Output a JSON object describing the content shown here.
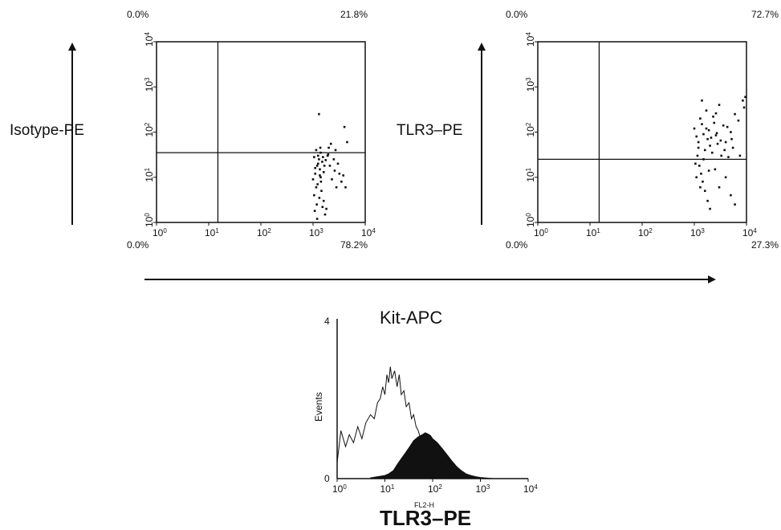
{
  "chart_data": [
    {
      "type": "scatter",
      "panel": "left",
      "ylabel": "Isotype-PE",
      "xscale": "log",
      "yscale": "log",
      "xlim": [
        1,
        10000
      ],
      "ylim": [
        1,
        10000
      ],
      "x_ticks": [
        "10^0",
        "10^1",
        "10^2",
        "10^3",
        "10^4"
      ],
      "y_ticks": [
        "10^0",
        "10^1",
        "10^2",
        "10^3",
        "10^4"
      ],
      "gate": {
        "x": 15,
        "y": 35
      },
      "quadrants": {
        "upper_left": "0.0%",
        "upper_right": "21.8%",
        "lower_left": "0.0%",
        "lower_right": "78.2%"
      },
      "points": [
        [
          1200,
          18
        ],
        [
          1100,
          12
        ],
        [
          1300,
          25
        ],
        [
          1000,
          9
        ],
        [
          1150,
          6
        ],
        [
          1250,
          30
        ],
        [
          1050,
          4
        ],
        [
          1350,
          15
        ],
        [
          1180,
          2.5
        ],
        [
          1400,
          10
        ],
        [
          1220,
          7
        ],
        [
          1080,
          1.8
        ],
        [
          1500,
          22
        ],
        [
          1600,
          3
        ],
        [
          1700,
          1.5
        ],
        [
          1900,
          30
        ],
        [
          2000,
          45
        ],
        [
          2200,
          55
        ],
        [
          2500,
          25
        ],
        [
          2600,
          14
        ],
        [
          2800,
          6
        ],
        [
          3200,
          12
        ],
        [
          3500,
          8
        ],
        [
          4000,
          130
        ],
        [
          4500,
          60
        ],
        [
          1300,
          250
        ],
        [
          1150,
          40
        ],
        [
          1400,
          35
        ],
        [
          1250,
          20
        ],
        [
          1100,
          16
        ],
        [
          1350,
          11
        ],
        [
          1450,
          5
        ],
        [
          1550,
          28
        ],
        [
          1650,
          18
        ],
        [
          1800,
          2
        ],
        [
          1200,
          1.2
        ],
        [
          1320,
          3.5
        ],
        [
          1420,
          8
        ],
        [
          1600,
          13
        ],
        [
          1750,
          24
        ],
        [
          1950,
          32
        ],
        [
          2100,
          18
        ],
        [
          2300,
          9
        ],
        [
          2700,
          40
        ],
        [
          3000,
          20
        ],
        [
          3800,
          11
        ],
        [
          4200,
          6
        ],
        [
          1050,
          28
        ],
        [
          1380,
          45
        ],
        [
          1520,
          2.2
        ]
      ]
    },
    {
      "type": "scatter",
      "panel": "right",
      "ylabel": "TLR3–PE",
      "xscale": "log",
      "yscale": "log",
      "xlim": [
        1,
        10000
      ],
      "ylim": [
        1,
        10000
      ],
      "x_ticks": [
        "10^0",
        "10^1",
        "10^2",
        "10^3",
        "10^4"
      ],
      "y_ticks": [
        "10^0",
        "10^1",
        "10^2",
        "10^3",
        "10^4"
      ],
      "gate": {
        "x": 15,
        "y": 25
      },
      "quadrants": {
        "upper_left": "0.0%",
        "upper_right": "72.7%",
        "lower_left": "0.0%",
        "lower_right": "27.3%"
      },
      "points": [
        [
          1000,
          120
        ],
        [
          1100,
          80
        ],
        [
          1200,
          60
        ],
        [
          1300,
          200
        ],
        [
          1400,
          150
        ],
        [
          1500,
          90
        ],
        [
          1600,
          40
        ],
        [
          1700,
          300
        ],
        [
          1800,
          70
        ],
        [
          1900,
          110
        ],
        [
          2000,
          50
        ],
        [
          2200,
          35
        ],
        [
          2400,
          160
        ],
        [
          2600,
          85
        ],
        [
          2800,
          55
        ],
        [
          3000,
          400
        ],
        [
          3300,
          30
        ],
        [
          3600,
          140
        ],
        [
          4000,
          60
        ],
        [
          4500,
          28
        ],
        [
          5000,
          100
        ],
        [
          5500,
          45
        ],
        [
          6000,
          250
        ],
        [
          7000,
          180
        ],
        [
          9000,
          350
        ],
        [
          9500,
          600
        ],
        [
          1150,
          30
        ],
        [
          1250,
          18
        ],
        [
          1350,
          12
        ],
        [
          1450,
          8
        ],
        [
          1600,
          5
        ],
        [
          1800,
          3
        ],
        [
          2000,
          2
        ],
        [
          2500,
          15
        ],
        [
          3000,
          6
        ],
        [
          4000,
          10
        ],
        [
          5000,
          4
        ],
        [
          6000,
          2.5
        ],
        [
          1050,
          20
        ],
        [
          1200,
          45
        ],
        [
          1500,
          25
        ],
        [
          1700,
          120
        ],
        [
          2100,
          75
        ],
        [
          2300,
          220
        ],
        [
          2700,
          95
        ],
        [
          3200,
          65
        ],
        [
          3800,
          40
        ],
        [
          4300,
          130
        ],
        [
          5200,
          70
        ],
        [
          7500,
          30
        ],
        [
          8500,
          500
        ],
        [
          1100,
          10
        ],
        [
          1300,
          6
        ],
        [
          1900,
          14
        ],
        [
          1400,
          500
        ],
        [
          2600,
          260
        ]
      ]
    },
    {
      "type": "area",
      "panel": "histogram",
      "ylabel": "Events",
      "xlabel": "FL2-H",
      "xscale": "log",
      "xlim": [
        1,
        10000
      ],
      "ylim": [
        0,
        4
      ],
      "x_ticks": [
        "10^0",
        "10^1",
        "10^2",
        "10^3",
        "10^4"
      ],
      "y_ticks": [
        "0",
        "4"
      ],
      "series": [
        {
          "style": "outline",
          "x": [
            1,
            1.2,
            1.5,
            1.8,
            2.2,
            2.7,
            3.3,
            4,
            5,
            6,
            7,
            8,
            9,
            10,
            11,
            12,
            13,
            14,
            16,
            18,
            20,
            22,
            25,
            28,
            32,
            36,
            40,
            45,
            50,
            56,
            63,
            70,
            80,
            90,
            100,
            125,
            160,
            200,
            250,
            320,
            400,
            500,
            630,
            800,
            1000
          ],
          "values": [
            0.4,
            1.2,
            0.8,
            1.1,
            0.9,
            1.3,
            1.0,
            1.4,
            1.6,
            1.5,
            1.9,
            2.0,
            2.3,
            2.1,
            2.6,
            2.4,
            2.8,
            2.5,
            2.7,
            2.3,
            2.6,
            2.1,
            2.2,
            1.8,
            1.9,
            1.5,
            1.6,
            1.3,
            1.2,
            1.0,
            0.9,
            0.7,
            0.6,
            0.5,
            0.4,
            0.3,
            0.2,
            0.15,
            0.1,
            0.08,
            0.05,
            0.04,
            0.03,
            0.02,
            0.01
          ]
        },
        {
          "style": "filled",
          "x": [
            5,
            7,
            10,
            12,
            15,
            18,
            22,
            27,
            33,
            40,
            50,
            60,
            70,
            80,
            90,
            100,
            125,
            160,
            200,
            250,
            320,
            400,
            500,
            630,
            800,
            1000,
            1250,
            1600,
            2000
          ],
          "values": [
            0.02,
            0.05,
            0.08,
            0.12,
            0.2,
            0.35,
            0.5,
            0.65,
            0.8,
            0.95,
            1.05,
            1.1,
            1.15,
            1.12,
            1.08,
            1.0,
            0.9,
            0.75,
            0.6,
            0.45,
            0.3,
            0.2,
            0.12,
            0.08,
            0.05,
            0.03,
            0.02,
            0.01,
            0.0
          ]
        }
      ]
    }
  ],
  "shared": {
    "xlabel": "Kit-APC",
    "histogram_title": "TLR3–PE"
  }
}
